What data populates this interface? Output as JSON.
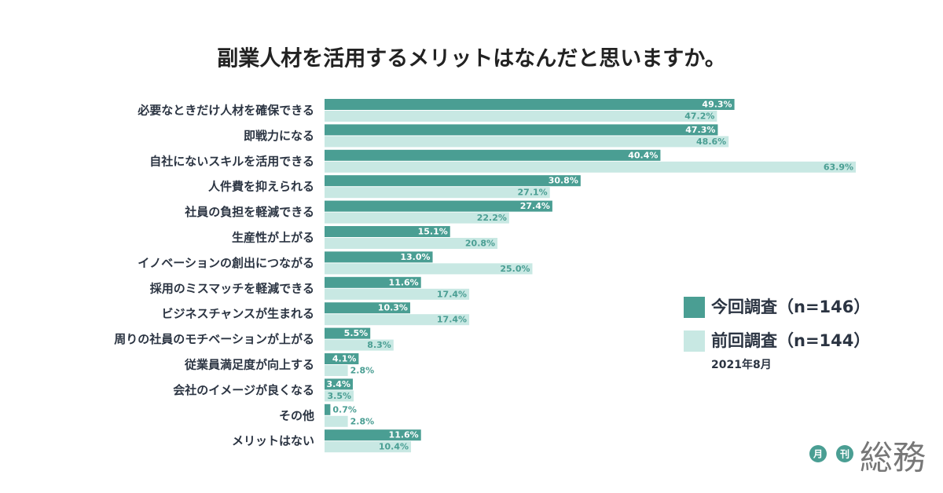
{
  "chart_data": {
    "type": "hbar",
    "title": "副業人材を活用するメリットはなんだと思いますか。",
    "subtitle": "2021年8月",
    "categories": [
      "必要なときだけ人材を確保できる",
      "即戦力になる",
      "自社にないスキルを活用できる",
      "人件費を抑えられる",
      "社員の負担を軽減できる",
      "生産性が上がる",
      "イノベーションの創出につながる",
      "採用のミスマッチを軽減できる",
      "ビジネスチャンスが生まれる",
      "周りの社員のモチベーションが上がる",
      "従業員満足度が向上する",
      "会社のイメージが良くなる",
      "その他",
      "メリットはない"
    ],
    "series": [
      {
        "name": "今回調査（n=146）",
        "color": "#4a9e93",
        "values": [
          49.3,
          47.3,
          40.4,
          30.8,
          27.4,
          15.1,
          13.0,
          11.6,
          10.3,
          5.5,
          4.1,
          3.4,
          0.7,
          11.6
        ],
        "value_labels": [
          "49.3%",
          "47.3%",
          "40.4%",
          "30.8%",
          "27.4%",
          "15.1%",
          "13.0%",
          "11.6%",
          "10.3%",
          "5.5%",
          "4.1%",
          "3.4%",
          "0.7%",
          "11.6%"
        ]
      },
      {
        "name": "前回調査（n=144）",
        "color": "#c8e8e3",
        "values": [
          47.2,
          48.6,
          63.9,
          27.1,
          22.2,
          20.8,
          25.0,
          17.4,
          17.4,
          8.3,
          2.8,
          3.5,
          2.8,
          10.4
        ],
        "value_labels": [
          "47.2%",
          "48.6%",
          "63.9%",
          "27.1%",
          "22.2%",
          "20.8%",
          "25.0%",
          "17.4%",
          "17.4%",
          "8.3%",
          "2.8%",
          "3.5%",
          "2.8%",
          "10.4%"
        ]
      }
    ],
    "logo": {
      "badges": [
        "月",
        "刊"
      ],
      "text": "総務"
    }
  }
}
